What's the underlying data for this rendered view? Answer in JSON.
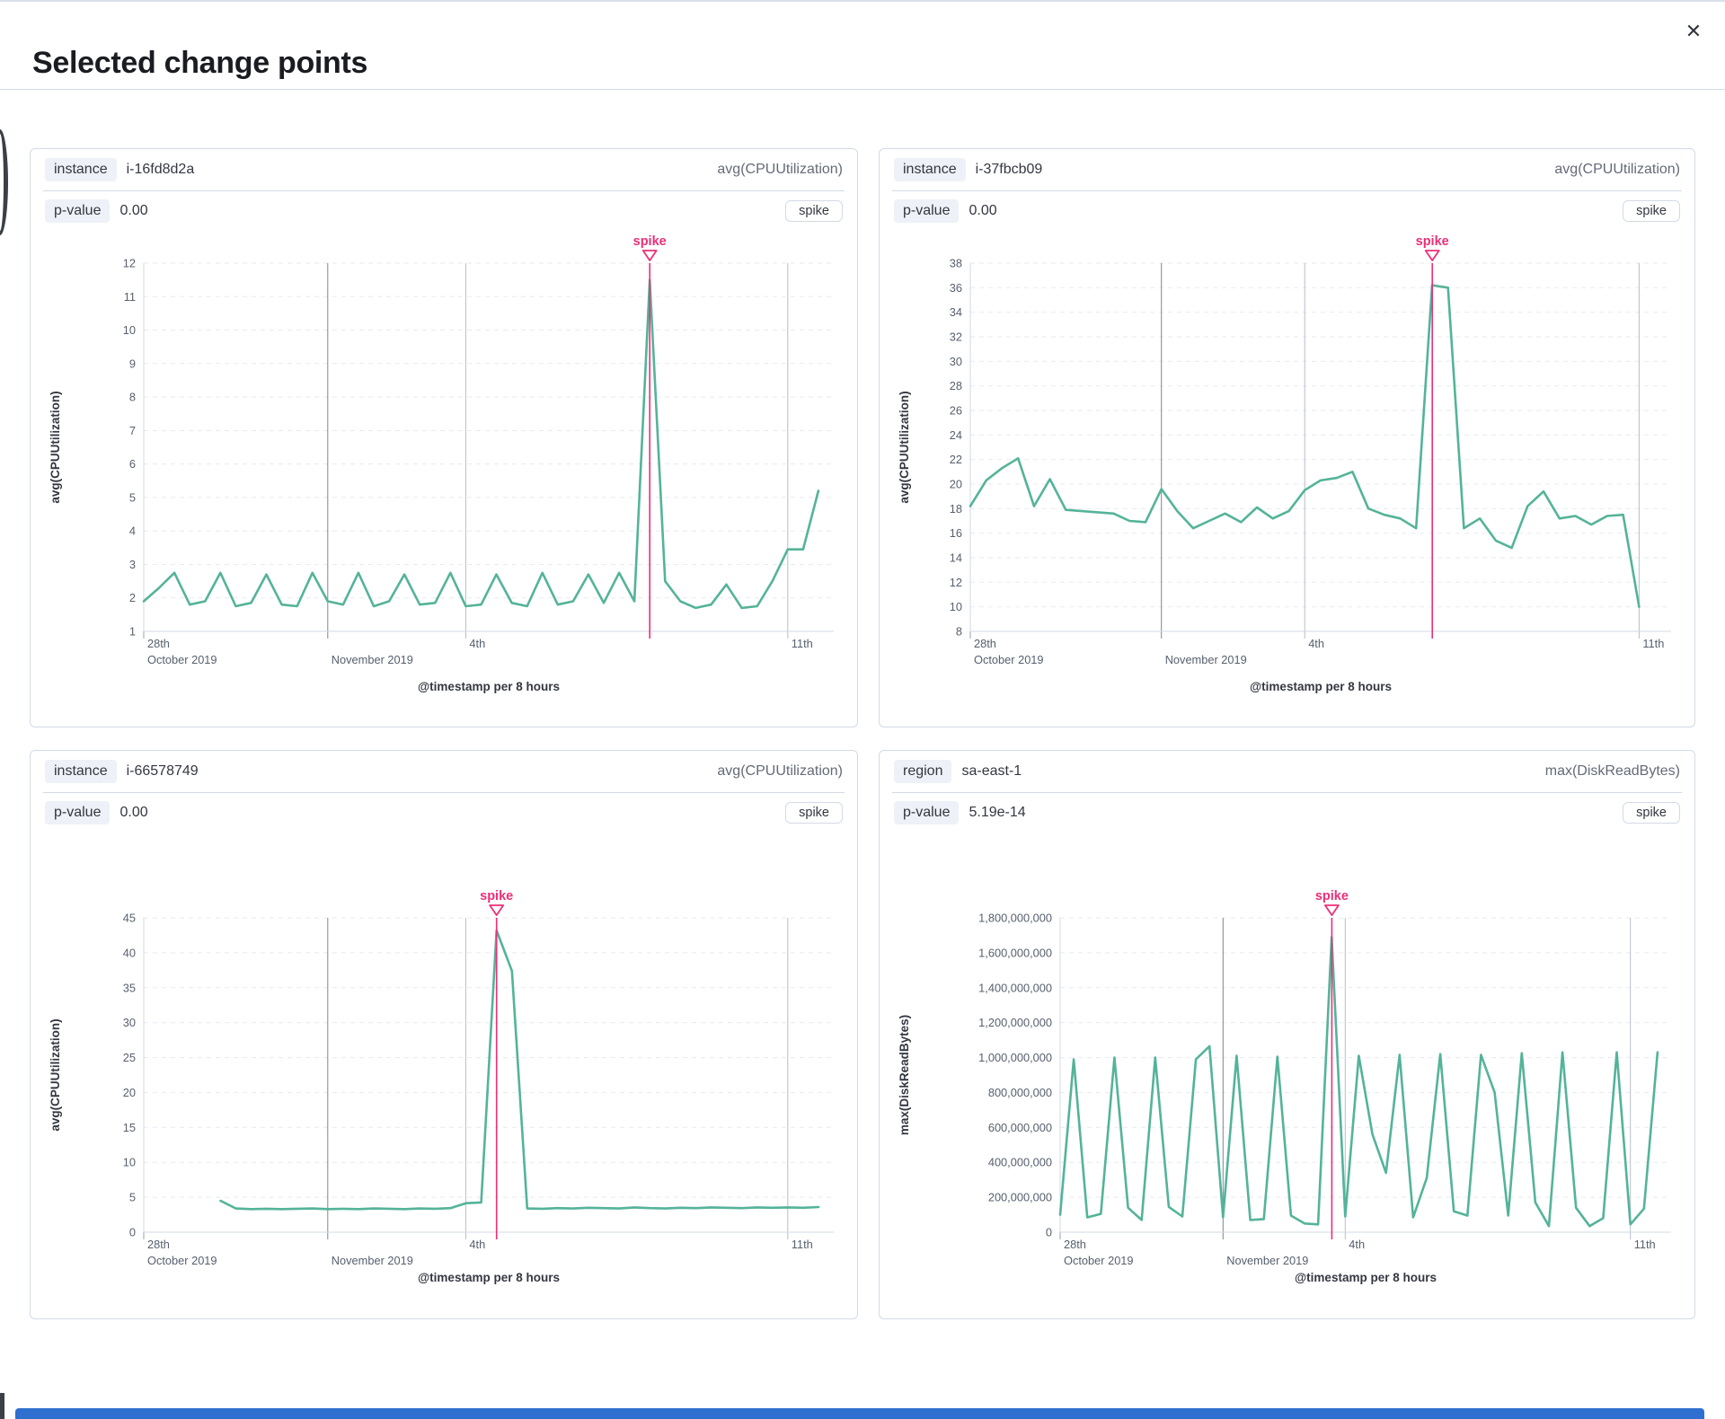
{
  "page": {
    "title": "Selected change points"
  },
  "icons": {
    "close": "✕"
  },
  "colors": {
    "series": "#54b399",
    "annotation": "#ed2f78",
    "badge_bg": "#eff1f8",
    "panel_border": "#d3dae6"
  },
  "panels": [
    {
      "key_label": "instance",
      "key_value": "i-16fd8d2a",
      "metric": "avg(CPUUtilization)",
      "pvalue_label": "p-value",
      "pvalue": "0.00",
      "type_badge": "spike",
      "chart_data": {
        "type": "line",
        "ylabel": "avg(CPUUtilization)",
        "xlabel": "@timestamp per 8 hours",
        "ylim": [
          1,
          12
        ],
        "ytick_vals": [
          1,
          2,
          3,
          4,
          5,
          6,
          7,
          8,
          9,
          10,
          11,
          12
        ],
        "ytick_labels": [
          "1",
          "2",
          "3",
          "4",
          "5",
          "6",
          "7",
          "8",
          "9",
          "10",
          "11",
          "12"
        ],
        "xlim_days": [
          0,
          15
        ],
        "xticks": [
          {
            "day": 0,
            "line1": "28th",
            "line2": "October 2019",
            "style": "tick"
          },
          {
            "day": 4,
            "line1": "",
            "line2": "November 2019",
            "style": "month"
          },
          {
            "day": 7,
            "line1": "4th",
            "line2": "",
            "style": "day"
          },
          {
            "day": 14,
            "line1": "11th",
            "line2": "",
            "style": "day"
          }
        ],
        "x_start_day": 0,
        "x_step_days": 0.33333,
        "values": [
          1.9,
          2.3,
          2.75,
          1.8,
          1.9,
          2.75,
          1.75,
          1.85,
          2.7,
          1.8,
          1.75,
          2.75,
          1.9,
          1.8,
          2.75,
          1.75,
          1.9,
          2.7,
          1.8,
          1.85,
          2.75,
          1.75,
          1.8,
          2.7,
          1.85,
          1.75,
          2.75,
          1.8,
          1.9,
          2.7,
          1.85,
          2.75,
          1.9,
          11.5,
          2.5,
          1.9,
          1.7,
          1.8,
          2.4,
          1.7,
          1.75,
          2.5,
          3.45,
          3.45,
          5.2
        ],
        "annotation": {
          "label": "spike",
          "day": 11.0
        }
      }
    },
    {
      "key_label": "instance",
      "key_value": "i-37fbcb09",
      "metric": "avg(CPUUtilization)",
      "pvalue_label": "p-value",
      "pvalue": "0.00",
      "type_badge": "spike",
      "chart_data": {
        "type": "line",
        "ylabel": "avg(CPUUtilization)",
        "xlabel": "@timestamp per 8 hours",
        "ylim": [
          8,
          38
        ],
        "ytick_vals": [
          8,
          10,
          12,
          14,
          16,
          18,
          20,
          22,
          24,
          26,
          28,
          30,
          32,
          34,
          36,
          38
        ],
        "ytick_labels": [
          "8",
          "10",
          "12",
          "14",
          "16",
          "18",
          "20",
          "22",
          "24",
          "26",
          "28",
          "30",
          "32",
          "34",
          "36",
          "38"
        ],
        "xlim_days": [
          0,
          14.67
        ],
        "xticks": [
          {
            "day": 0,
            "line1": "28th",
            "line2": "October 2019",
            "style": "tick"
          },
          {
            "day": 4,
            "line1": "",
            "line2": "November 2019",
            "style": "month"
          },
          {
            "day": 7,
            "line1": "4th",
            "line2": "",
            "style": "day"
          },
          {
            "day": 14,
            "line1": "11th",
            "line2": "",
            "style": "day"
          }
        ],
        "x_start_day": 0,
        "x_step_days": 0.33333,
        "values": [
          18.2,
          20.3,
          21.3,
          22.1,
          18.2,
          20.4,
          17.9,
          17.8,
          17.7,
          17.6,
          17.0,
          16.9,
          19.6,
          17.8,
          16.4,
          17.0,
          17.6,
          16.9,
          18.1,
          17.2,
          17.8,
          19.5,
          20.3,
          20.5,
          21.0,
          18.0,
          17.5,
          17.2,
          16.4,
          36.2,
          36.0,
          16.4,
          17.2,
          15.4,
          14.8,
          18.2,
          19.4,
          17.2,
          17.4,
          16.7,
          17.4,
          17.5,
          10.0
        ],
        "annotation": {
          "label": "spike",
          "day": 9.67
        }
      }
    },
    {
      "key_label": "instance",
      "key_value": "i-66578749",
      "metric": "avg(CPUUtilization)",
      "pvalue_label": "p-value",
      "pvalue": "0.00",
      "type_badge": "spike",
      "chart_data": {
        "type": "line",
        "ylabel": "avg(CPUUtilization)",
        "xlabel": "@timestamp per 8 hours",
        "ylim": [
          0,
          45
        ],
        "ytick_vals": [
          0,
          5,
          10,
          15,
          20,
          25,
          30,
          35,
          40,
          45
        ],
        "ytick_labels": [
          "0",
          "5",
          "10",
          "15",
          "20",
          "25",
          "30",
          "35",
          "40",
          "45"
        ],
        "xlim_days": [
          0,
          15
        ],
        "xticks": [
          {
            "day": 0,
            "line1": "28th",
            "line2": "October 2019",
            "style": "tick"
          },
          {
            "day": 4,
            "line1": "",
            "line2": "November 2019",
            "style": "month"
          },
          {
            "day": 7,
            "line1": "4th",
            "line2": "",
            "style": "day"
          },
          {
            "day": 14,
            "line1": "11th",
            "line2": "",
            "style": "day"
          }
        ],
        "x_start_day": 1.67,
        "x_step_days": 0.33333,
        "values": [
          4.5,
          3.4,
          3.3,
          3.35,
          3.3,
          3.35,
          3.4,
          3.3,
          3.35,
          3.3,
          3.4,
          3.35,
          3.3,
          3.4,
          3.35,
          3.45,
          4.15,
          4.25,
          43.2,
          37.4,
          3.4,
          3.35,
          3.45,
          3.4,
          3.5,
          3.45,
          3.4,
          3.55,
          3.45,
          3.4,
          3.5,
          3.45,
          3.55,
          3.5,
          3.45,
          3.55,
          3.5,
          3.55,
          3.5,
          3.6
        ],
        "annotation": {
          "label": "spike",
          "day": 7.67
        }
      }
    },
    {
      "key_label": "region",
      "key_value": "sa-east-1",
      "metric": "max(DiskReadBytes)",
      "pvalue_label": "p-value",
      "pvalue": "5.19e-14",
      "type_badge": "spike",
      "chart_data": {
        "type": "line",
        "ylabel": "max(DiskReadBytes)",
        "xlabel": "@timestamp per 8 hours",
        "ylim": [
          0,
          1800000000
        ],
        "ytick_vals": [
          0,
          200000000,
          400000000,
          600000000,
          800000000,
          1000000000,
          1200000000,
          1400000000,
          1600000000,
          1800000000
        ],
        "ytick_labels": [
          "0",
          "200,000,000",
          "400,000,000",
          "600,000,000",
          "800,000,000",
          "1,000,000,000",
          "1,200,000,000",
          "1,400,000,000",
          "1,600,000,000",
          "1,800,000,000"
        ],
        "xlim_days": [
          0,
          15
        ],
        "xticks": [
          {
            "day": 0,
            "line1": "28th",
            "line2": "October 2019",
            "style": "tick"
          },
          {
            "day": 4,
            "line1": "",
            "line2": "November 2019",
            "style": "month"
          },
          {
            "day": 7,
            "line1": "4th",
            "line2": "",
            "style": "day"
          },
          {
            "day": 14,
            "line1": "11th",
            "line2": "",
            "style": "day"
          }
        ],
        "x_start_day": 0,
        "x_step_days": 0.33333,
        "values": [
          100000000,
          990000000,
          85000000,
          105000000,
          1000000000,
          140000000,
          70000000,
          1000000000,
          145000000,
          90000000,
          990000000,
          1065000000,
          85000000,
          1010000000,
          70000000,
          75000000,
          1005000000,
          95000000,
          50000000,
          45000000,
          1690000000,
          90000000,
          1010000000,
          560000000,
          340000000,
          1015000000,
          85000000,
          310000000,
          1020000000,
          120000000,
          95000000,
          1015000000,
          800000000,
          95000000,
          1025000000,
          170000000,
          35000000,
          1030000000,
          140000000,
          35000000,
          80000000,
          1030000000,
          45000000,
          135000000,
          1030000000
        ],
        "annotation": {
          "label": "spike",
          "day": 6.67
        }
      }
    }
  ]
}
